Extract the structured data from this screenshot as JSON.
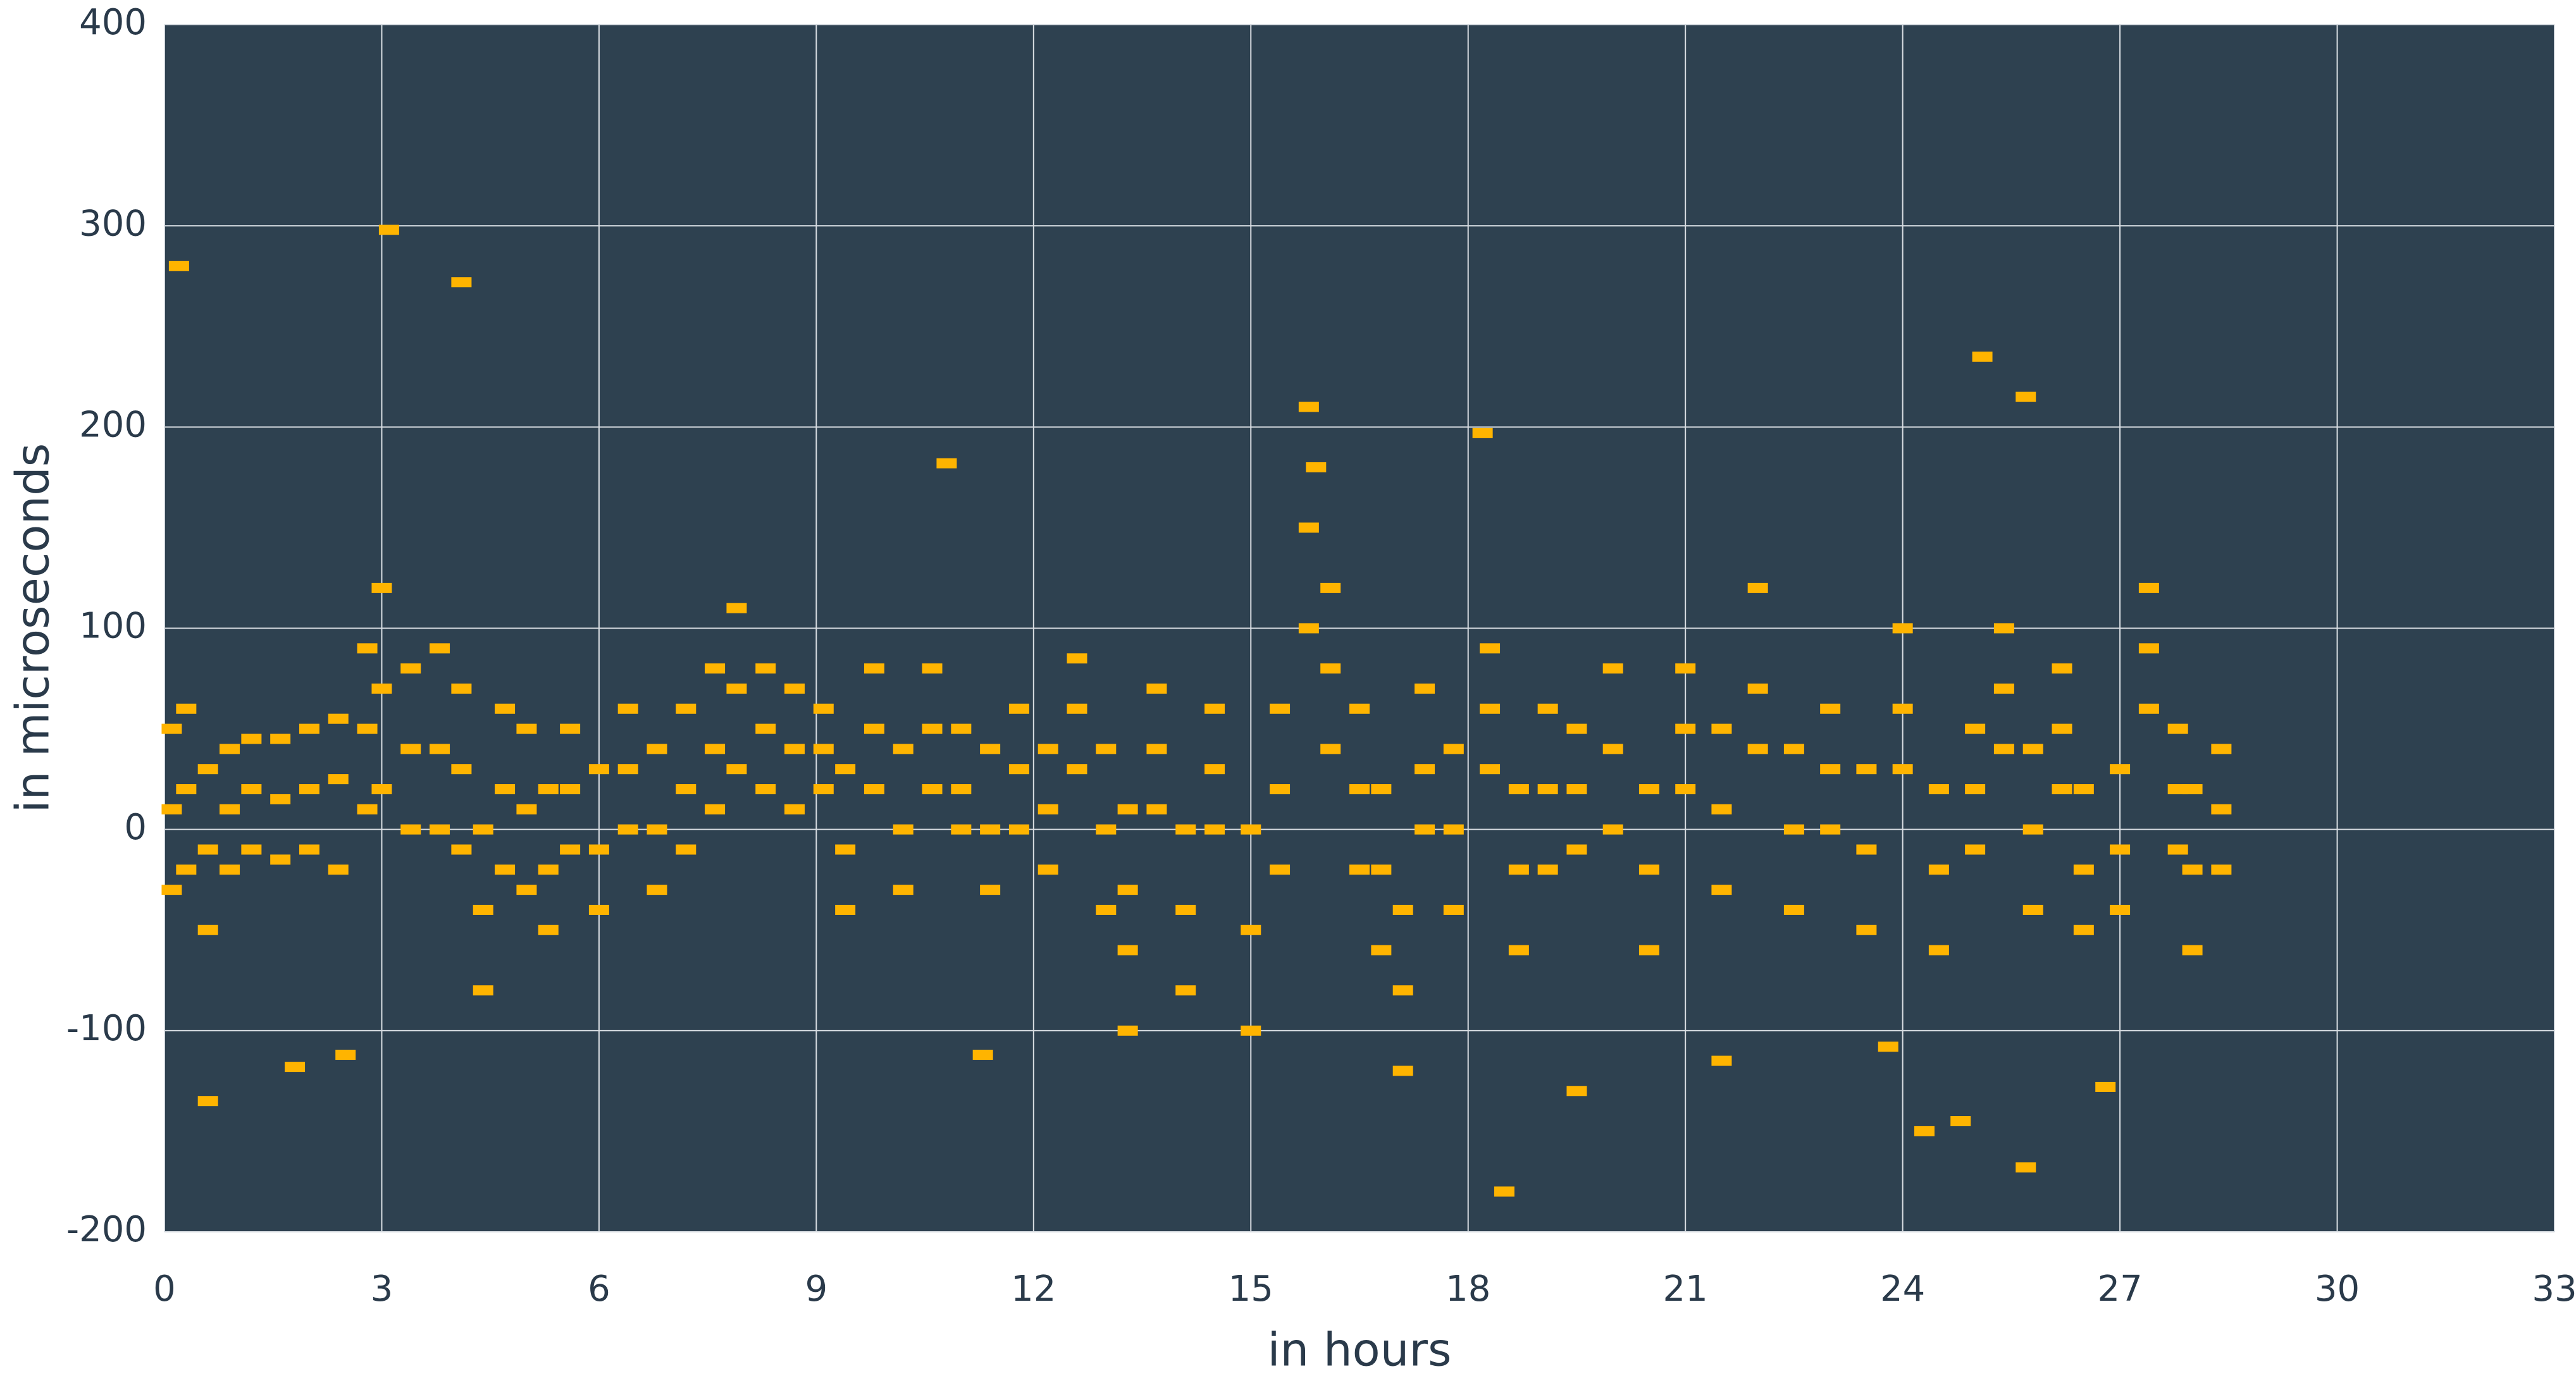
{
  "chart_data": {
    "type": "scatter",
    "x_label": "in hours",
    "y_label": "in microseconds",
    "color": "#ffb400",
    "background": "#2e4150",
    "grid": true,
    "xlim": [
      0,
      33
    ],
    "xticks": [
      0,
      3,
      6,
      9,
      12,
      15,
      18,
      21,
      24,
      27,
      30,
      33
    ],
    "ylim": [
      -200,
      400
    ],
    "yticks": [
      -200,
      -100,
      0,
      100,
      200,
      300,
      400
    ],
    "x": [
      0.1,
      0.1,
      0.1,
      0.3,
      0.3,
      0.3,
      0.6,
      0.6,
      0.6,
      0.9,
      0.9,
      0.9,
      1.2,
      1.2,
      1.2,
      1.6,
      1.6,
      1.6,
      2.0,
      2.0,
      2.0,
      2.4,
      2.4,
      2.4,
      2.8,
      2.8,
      2.8,
      3.0,
      3.0,
      3.0,
      3.4,
      3.4,
      3.4,
      3.8,
      3.8,
      3.8,
      4.1,
      4.1,
      4.1,
      4.4,
      4.4,
      4.4,
      4.7,
      4.7,
      4.7,
      5.0,
      5.0,
      5.0,
      5.3,
      5.3,
      5.3,
      5.6,
      5.6,
      5.6,
      6.0,
      6.0,
      6.0,
      6.4,
      6.4,
      6.4,
      6.8,
      6.8,
      6.8,
      7.2,
      7.2,
      7.2,
      7.6,
      7.6,
      7.6,
      7.9,
      7.9,
      7.9,
      8.3,
      8.3,
      8.3,
      8.7,
      8.7,
      8.7,
      9.1,
      9.1,
      9.1,
      9.4,
      9.4,
      9.4,
      9.8,
      9.8,
      9.8,
      10.2,
      10.2,
      10.2,
      10.6,
      10.6,
      10.6,
      11.0,
      11.0,
      11.0,
      11.4,
      11.4,
      11.4,
      11.8,
      11.8,
      11.8,
      12.2,
      12.2,
      12.2,
      12.6,
      12.6,
      12.6,
      13.0,
      13.0,
      13.0,
      13.3,
      13.3,
      13.3,
      13.7,
      13.7,
      13.7,
      14.1,
      14.1,
      14.1,
      14.5,
      14.5,
      14.5,
      15.0,
      15.0,
      15.0,
      15.4,
      15.4,
      15.4,
      15.8,
      15.8,
      15.8,
      16.1,
      16.1,
      16.1,
      16.5,
      16.5,
      16.5,
      16.8,
      16.8,
      16.8,
      17.1,
      17.1,
      17.1,
      17.4,
      17.4,
      17.4,
      17.8,
      17.8,
      17.8,
      18.3,
      18.3,
      18.3,
      18.7,
      18.7,
      18.7,
      19.1,
      19.1,
      19.1,
      19.5,
      19.5,
      19.5,
      20.0,
      20.0,
      20.0,
      20.5,
      20.5,
      20.5,
      21.0,
      21.0,
      21.0,
      21.5,
      21.5,
      21.5,
      22.0,
      22.0,
      22.0,
      22.5,
      22.5,
      22.5,
      23.0,
      23.0,
      23.0,
      23.5,
      23.5,
      23.5,
      24.0,
      24.0,
      24.0,
      24.5,
      24.5,
      24.5,
      25.0,
      25.0,
      25.0,
      25.4,
      25.4,
      25.4,
      25.8,
      25.8,
      25.8,
      26.2,
      26.2,
      26.2,
      26.5,
      26.5,
      26.5,
      27.0,
      27.0,
      27.0,
      27.4,
      27.4,
      27.4,
      27.8,
      27.8,
      27.8,
      28.0,
      28.0,
      28.0,
      28.4,
      28.4,
      28.4,
      0.2,
      3.1,
      4.1,
      25.1,
      25.7,
      18.2,
      10.8,
      0.6,
      1.8,
      2.5,
      11.3,
      13.3,
      18.5,
      25.7,
      24.3,
      24.8,
      19.5,
      26.8,
      21.5,
      23.8,
      15.9
    ],
    "y": [
      -30,
      10,
      50,
      -20,
      20,
      60,
      -50,
      -10,
      30,
      -20,
      10,
      40,
      -10,
      20,
      45,
      -15,
      15,
      45,
      -10,
      20,
      50,
      -20,
      25,
      55,
      10,
      50,
      90,
      20,
      70,
      120,
      0,
      40,
      80,
      0,
      40,
      90,
      -10,
      30,
      70,
      -80,
      -40,
      0,
      -20,
      20,
      60,
      -30,
      10,
      50,
      -50,
      -20,
      20,
      -10,
      20,
      50,
      -40,
      -10,
      30,
      0,
      30,
      60,
      -30,
      0,
      40,
      -10,
      20,
      60,
      10,
      40,
      80,
      30,
      70,
      110,
      20,
      50,
      80,
      10,
      40,
      70,
      20,
      40,
      60,
      -40,
      -10,
      30,
      20,
      50,
      80,
      -30,
      0,
      40,
      20,
      50,
      80,
      0,
      20,
      50,
      -30,
      0,
      40,
      0,
      30,
      60,
      -20,
      10,
      40,
      30,
      60,
      85,
      -40,
      0,
      40,
      -60,
      -30,
      10,
      10,
      40,
      70,
      -80,
      -40,
      0,
      0,
      30,
      60,
      -100,
      -50,
      0,
      -20,
      20,
      60,
      100,
      150,
      210,
      40,
      80,
      120,
      -20,
      20,
      60,
      -60,
      -20,
      20,
      -120,
      -80,
      -40,
      0,
      30,
      70,
      -40,
      0,
      40,
      30,
      60,
      90,
      -60,
      -20,
      20,
      -20,
      20,
      60,
      -10,
      20,
      50,
      0,
      40,
      80,
      -60,
      -20,
      20,
      20,
      50,
      80,
      -30,
      10,
      50,
      40,
      70,
      120,
      -40,
      0,
      40,
      0,
      30,
      60,
      -50,
      -10,
      30,
      30,
      60,
      100,
      -60,
      -20,
      20,
      -10,
      20,
      50,
      40,
      70,
      100,
      -40,
      0,
      40,
      20,
      50,
      80,
      -50,
      -20,
      20,
      -40,
      -10,
      30,
      60,
      90,
      120,
      -10,
      20,
      50,
      -60,
      -20,
      20,
      -20,
      10,
      40,
      280,
      298,
      272,
      235,
      215,
      197,
      182,
      -135,
      -118,
      -112,
      -112,
      -100,
      -180,
      -168,
      -150,
      -145,
      -130,
      -128,
      -115,
      -108,
      180
    ]
  }
}
